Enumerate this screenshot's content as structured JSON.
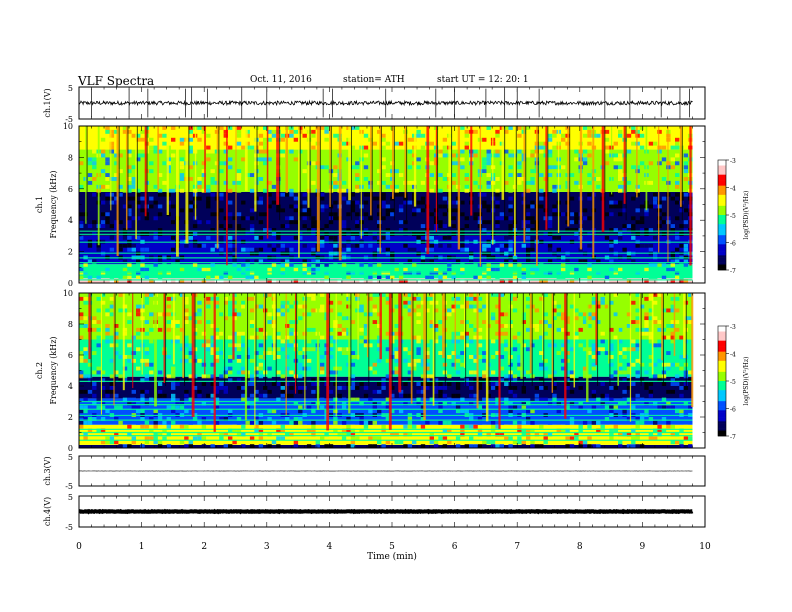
{
  "header": {
    "title": "VLF  Spectra",
    "date": "Oct. 11, 2016",
    "station": "station= ATH",
    "start": "start  UT  =    12: 20: 1"
  },
  "chart_data": [
    {
      "type": "line",
      "panel": "ch1-waveform",
      "ylabel": "ch.1(V)",
      "ylim": [
        -5,
        5
      ],
      "yticks": [
        "5",
        "-5"
      ],
      "xlim": [
        0,
        10
      ],
      "baseline": 0,
      "noise_amplitude": 0.6,
      "spike_times": [
        0.2,
        0.8,
        1.1,
        1.7,
        1.8,
        2.05,
        2.6,
        3.0,
        3.9,
        4.05,
        4.9,
        5.7,
        6.0,
        6.5,
        6.8,
        7.0,
        7.35,
        8.4,
        8.8,
        9.3,
        9.6,
        9.75
      ]
    },
    {
      "type": "heatmap",
      "panel": "ch1-spectrogram",
      "ylabel": "ch.1\nFrequency  (kHz)",
      "ylim": [
        0,
        10
      ],
      "yticks": [
        "0",
        "2",
        "4",
        "6",
        "8",
        "10"
      ],
      "xlim": [
        0,
        10
      ],
      "colorbar": {
        "label": "log(PSD)(V²/Hz)",
        "range": [
          -7,
          -3
        ],
        "ticks": [
          "-3",
          "-4",
          "-5",
          "-6",
          "-7"
        ]
      },
      "background_by_freq": [
        {
          "fmin": 0.0,
          "fmax": 0.3,
          "value": -3.3
        },
        {
          "fmin": 0.3,
          "fmax": 1.2,
          "value": -5.2
        },
        {
          "fmin": 1.2,
          "fmax": 3.0,
          "value": -6.4
        },
        {
          "fmin": 3.0,
          "fmax": 5.8,
          "value": -6.8
        },
        {
          "fmin": 5.8,
          "fmax": 8.5,
          "value": -5.0
        },
        {
          "fmin": 8.5,
          "fmax": 10.0,
          "value": -4.6
        }
      ],
      "lines_khz": [
        0.2,
        0.5,
        0.7,
        1.0,
        1.3,
        1.6,
        1.9,
        2.6,
        3.1,
        3.3
      ],
      "sferic_times": [
        0.1,
        0.3,
        0.5,
        0.6,
        0.75,
        0.9,
        1.05,
        1.25,
        1.4,
        1.55,
        1.7,
        1.85,
        2.0,
        2.2,
        2.35,
        2.5,
        2.65,
        2.8,
        3.0,
        3.15,
        3.3,
        3.5,
        3.65,
        3.8,
        4.0,
        4.15,
        4.3,
        4.5,
        4.65,
        4.8,
        5.0,
        5.2,
        5.35,
        5.55,
        5.7,
        5.9,
        6.05,
        6.25,
        6.4,
        6.6,
        6.75,
        6.95,
        7.1,
        7.3,
        7.45,
        7.65,
        7.8,
        8.0,
        8.2,
        8.35,
        8.5,
        8.7,
        8.9,
        9.05,
        9.25,
        9.4,
        9.6,
        9.75
      ]
    },
    {
      "type": "heatmap",
      "panel": "ch2-spectrogram",
      "ylabel": "ch.2\nFrequency  (kHz)",
      "ylim": [
        0,
        10
      ],
      "yticks": [
        "0",
        "2",
        "4",
        "6",
        "8",
        "10"
      ],
      "xlim": [
        0,
        10
      ],
      "colorbar": {
        "label": "log(PSD)(V²/Hz)",
        "range": [
          -7,
          -3
        ],
        "ticks": [
          "-3",
          "-4",
          "-5",
          "-6",
          "-7"
        ]
      },
      "background_by_freq": [
        {
          "fmin": 0.0,
          "fmax": 0.2,
          "value": -6.6
        },
        {
          "fmin": 0.2,
          "fmax": 1.5,
          "value": -4.6
        },
        {
          "fmin": 1.5,
          "fmax": 3.2,
          "value": -5.8
        },
        {
          "fmin": 3.2,
          "fmax": 4.6,
          "value": -6.6
        },
        {
          "fmin": 4.6,
          "fmax": 7.0,
          "value": -5.1
        },
        {
          "fmin": 7.0,
          "fmax": 10.0,
          "value": -4.7
        }
      ],
      "lines_khz": [
        0.5,
        0.8,
        1.0,
        1.2,
        1.8,
        2.1,
        2.5,
        2.8,
        3.0,
        4.3
      ],
      "sferic_times": [
        0.15,
        0.35,
        0.55,
        0.7,
        0.85,
        1.0,
        1.2,
        1.35,
        1.5,
        1.65,
        1.8,
        2.0,
        2.15,
        2.3,
        2.45,
        2.65,
        2.8,
        2.95,
        3.1,
        3.3,
        3.45,
        3.6,
        3.8,
        3.95,
        4.1,
        4.3,
        4.45,
        4.6,
        4.8,
        4.95,
        5.1,
        5.3,
        5.5,
        5.65,
        5.8,
        6.0,
        6.15,
        6.35,
        6.5,
        6.7,
        6.85,
        7.05,
        7.2,
        7.4,
        7.55,
        7.75,
        7.9,
        8.1,
        8.25,
        8.45,
        8.6,
        8.8,
        8.95,
        9.15,
        9.3,
        9.5,
        9.65,
        9.78
      ]
    },
    {
      "type": "line",
      "panel": "ch3-waveform",
      "ylabel": "ch.3(V)",
      "ylim": [
        -5,
        5
      ],
      "yticks": [
        "5",
        "-5"
      ],
      "xlim": [
        0,
        10
      ],
      "baseline": 0,
      "noise_amplitude": 0.05,
      "spike_times": []
    },
    {
      "type": "line",
      "panel": "ch4-waveform",
      "ylabel": "ch.4(V)",
      "ylim": [
        -5,
        5
      ],
      "yticks": [
        "5",
        "-5"
      ],
      "xlim": [
        0,
        10
      ],
      "baseline": 0,
      "noise_amplitude": 0.1,
      "spike_times": []
    }
  ],
  "xaxis": {
    "label": "Time  (min)",
    "ticks": [
      "0",
      "1",
      "2",
      "3",
      "4",
      "5",
      "6",
      "7",
      "8",
      "9",
      "10"
    ],
    "data_end": 9.8
  },
  "colors": {
    "colormap": [
      "#000000",
      "#00005a",
      "#0000c8",
      "#0050ff",
      "#00c8ff",
      "#00ff96",
      "#96ff00",
      "#ffff00",
      "#ff9600",
      "#ff0000",
      "#ffc8c8",
      "#ffffff"
    ]
  }
}
